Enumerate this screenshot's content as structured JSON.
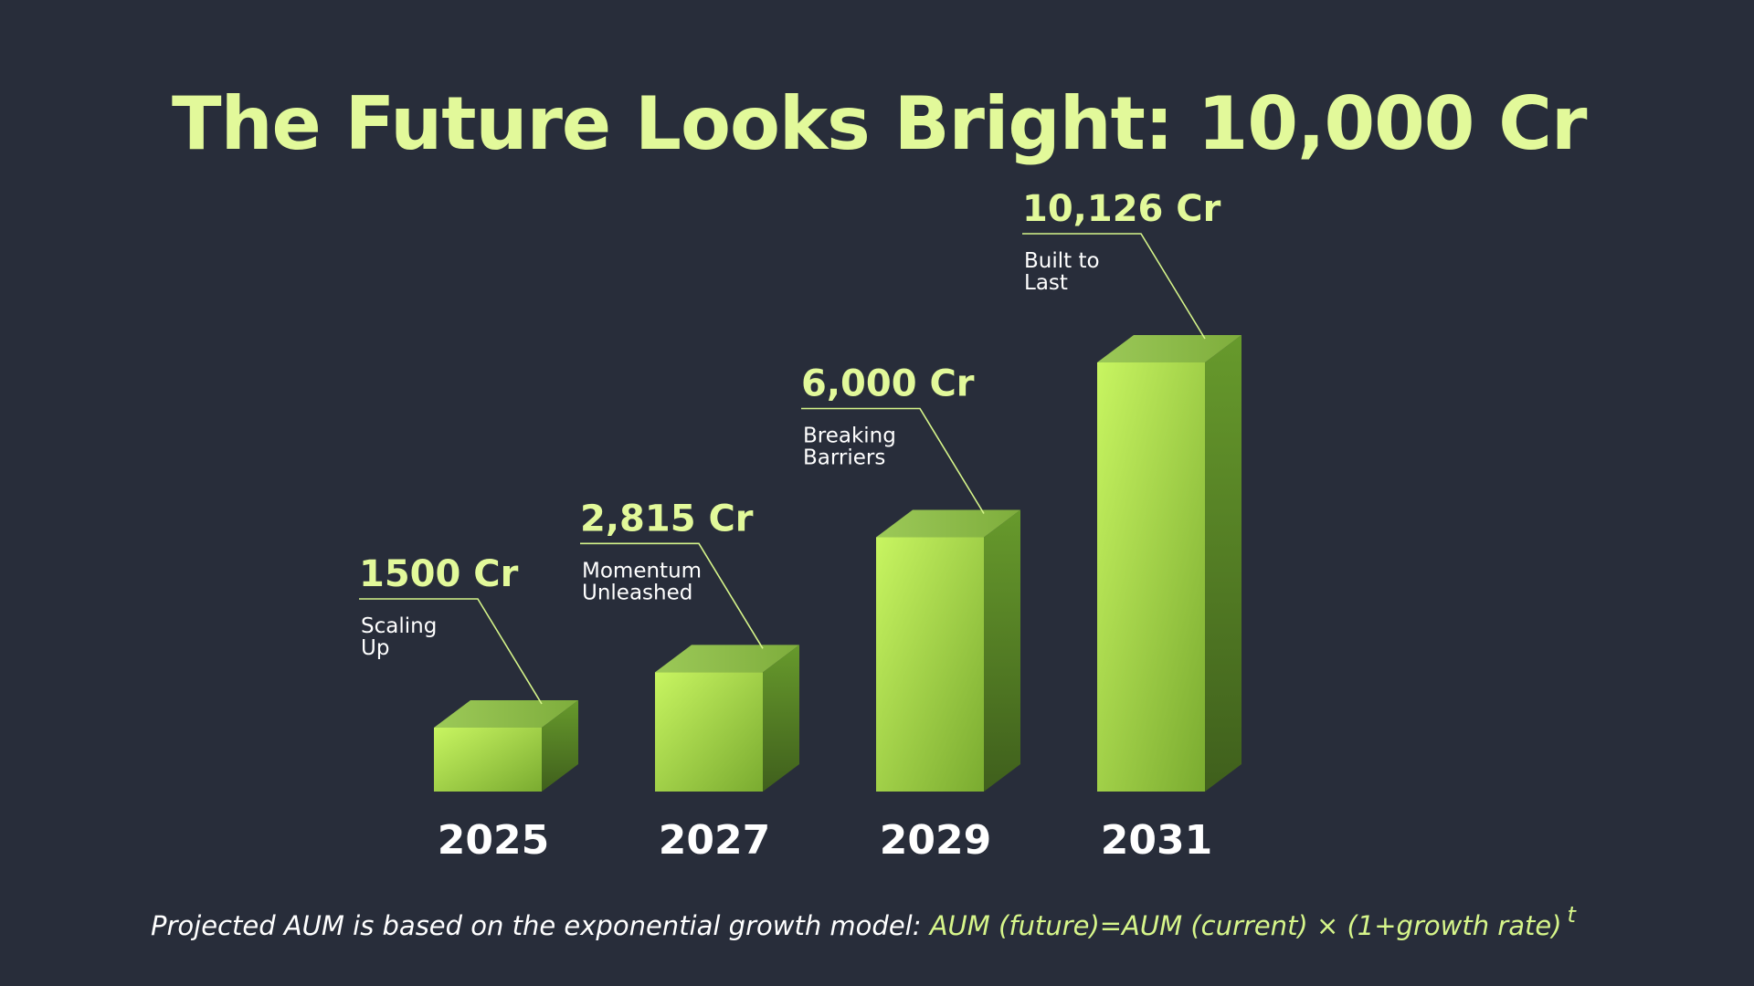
{
  "title": "The Future Looks Bright: 10,000 Cr",
  "footnote": {
    "text": "Projected AUM is based on the exponential growth model: ",
    "formula": "AUM (future)=AUM (current) × (1+growth rate)",
    "exponent": "t"
  },
  "colors": {
    "background": "#282d3a",
    "accent": "#e2f99a",
    "bar_front_top": "#c5f25e",
    "bar_front_bottom": "#7fb232",
    "bar_side": "#5a8a26",
    "bar_top": "#8fbd4a"
  },
  "chart_data": {
    "type": "bar",
    "title": "The Future Looks Bright: 10,000 Cr",
    "categories": [
      "2025",
      "2027",
      "2029",
      "2031"
    ],
    "values": [
      1500,
      2815,
      6000,
      10126
    ],
    "value_labels": [
      "1500 Cr",
      "2,815 Cr",
      "6,000 Cr",
      "10,126 Cr"
    ],
    "captions": [
      [
        "Scaling",
        "Up"
      ],
      [
        "Momentum",
        "Unleashed"
      ],
      [
        "Breaking",
        "Barriers"
      ],
      [
        "Built to",
        "Last"
      ]
    ],
    "ylim": [
      0,
      10126
    ],
    "grid": false,
    "style": "3d-bar"
  }
}
